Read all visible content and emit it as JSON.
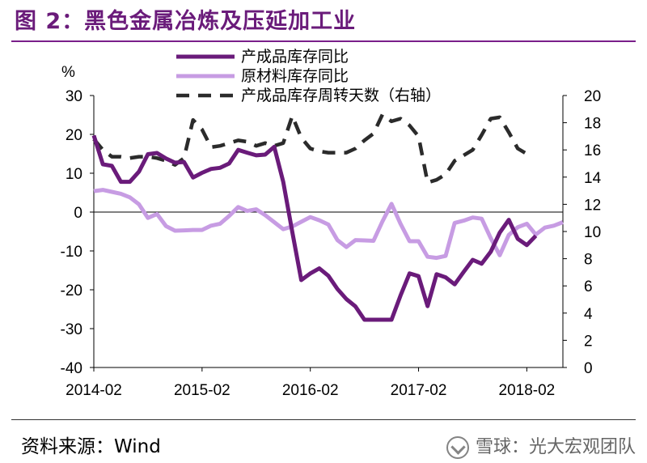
{
  "figure": {
    "title": "图 2：黑色金属冶炼及压延加工业",
    "source": "资料来源：Wind",
    "watermark": "雪球：光大宏观团队"
  },
  "chart_data": {
    "type": "line",
    "y_unit": "%",
    "x_tick_labels": [
      "2014-02",
      "2015-02",
      "2016-02",
      "2017-02",
      "2018-02"
    ],
    "x_range": [
      0,
      52
    ],
    "ylim_left": [
      -40,
      30
    ],
    "yticks_left": [
      -40,
      -30,
      -20,
      -10,
      0,
      10,
      20,
      30
    ],
    "ylim_right": [
      0,
      20
    ],
    "yticks_right": [
      0,
      2,
      4,
      6,
      8,
      10,
      12,
      14,
      16,
      18,
      20
    ],
    "legend_position": "top",
    "grid": false,
    "series": [
      {
        "name": "产成品库存同比",
        "axis": "left",
        "style": "solid",
        "color": "#6a1b7a",
        "x": [
          0,
          1,
          2,
          3,
          4,
          5,
          6,
          7,
          8,
          9,
          10,
          11,
          12,
          13,
          14,
          15,
          16,
          17,
          18,
          19,
          20,
          21,
          22,
          23,
          24,
          25,
          26,
          27,
          28,
          29,
          30,
          31,
          32,
          33,
          34,
          35,
          36,
          37,
          38,
          39,
          40,
          41,
          42,
          43,
          44,
          45,
          46,
          47,
          48,
          49,
          50,
          51,
          52
        ],
        "values": [
          19.7,
          12.3,
          11.9,
          7.8,
          7.8,
          10.4,
          14.9,
          15.2,
          13.8,
          12.7,
          12.9,
          8.9,
          10.1,
          11.1,
          11.4,
          12.5,
          16.0,
          15.3,
          14.6,
          14.8,
          16.8,
          7.8,
          -5.1,
          -17.5,
          -15.8,
          -14.5,
          -16.4,
          -19.8,
          -22.4,
          -24.3,
          -27.7,
          -27.7,
          -27.7,
          -27.7,
          -21.5,
          -15.8,
          -16.5,
          -24.2,
          -16.0,
          -16.8,
          -18.6,
          -15.4,
          -12.3,
          -13.3,
          -10.2,
          -5.3,
          -2.0,
          -6.9,
          -8.5,
          -6.1,
          null,
          null,
          null
        ]
      },
      {
        "name": "原材料库存同比",
        "axis": "left",
        "style": "solid",
        "color": "#c79ce3",
        "x": [
          0,
          1,
          2,
          3,
          4,
          5,
          6,
          7,
          8,
          9,
          10,
          11,
          12,
          13,
          14,
          15,
          16,
          17,
          18,
          19,
          20,
          21,
          22,
          23,
          24,
          25,
          26,
          27,
          28,
          29,
          30,
          31,
          32,
          33,
          34,
          35,
          36,
          37,
          38,
          39,
          40,
          41,
          42,
          43,
          44,
          45,
          46,
          47,
          48,
          49,
          50,
          51,
          52
        ],
        "values": [
          5.4,
          5.7,
          5.2,
          4.7,
          3.8,
          2.0,
          -1.5,
          -0.5,
          -3.6,
          -4.8,
          -4.7,
          -4.6,
          -4.6,
          -3.5,
          -3.0,
          -1.0,
          1.3,
          0.3,
          0.7,
          -0.8,
          -2.6,
          -4.4,
          -3.7,
          -2.5,
          -1.3,
          -2.1,
          -3.2,
          -7.2,
          -9.0,
          -7.2,
          -7.3,
          -7.4,
          -2.4,
          2.1,
          -3.0,
          -7.5,
          -7.5,
          -11.5,
          -11.8,
          -11.3,
          -2.8,
          -2.2,
          -1.4,
          -1.7,
          -6.7,
          -11.1,
          -5.9,
          -3.9,
          -3.0,
          -5.8,
          -4.0,
          -3.5,
          -2.6
        ]
      },
      {
        "name": "产成品库存周转天数（右轴）",
        "axis": "right",
        "style": "dashed",
        "color": "#2b2b2b",
        "x": [
          0,
          1,
          2,
          3,
          4,
          5,
          6,
          7,
          8,
          9,
          10,
          11,
          12,
          13,
          14,
          15,
          16,
          17,
          18,
          19,
          20,
          21,
          22,
          23,
          24,
          25,
          26,
          27,
          28,
          29,
          30,
          31,
          32,
          33,
          34,
          35,
          36,
          37,
          38,
          39,
          40,
          41,
          42,
          43,
          44,
          45,
          46,
          47,
          48,
          49,
          50,
          51,
          52
        ],
        "values": [
          16.8,
          16.0,
          15.5,
          15.5,
          15.4,
          15.5,
          15.5,
          15.4,
          15.2,
          14.9,
          15.4,
          18.2,
          17.5,
          16.2,
          16.3,
          16.5,
          16.7,
          16.6,
          16.3,
          16.5,
          16.3,
          16.5,
          18.5,
          16.9,
          16.1,
          15.9,
          15.8,
          15.8,
          15.8,
          16.1,
          16.7,
          17.2,
          18.6,
          18.1,
          18.3,
          17.8,
          17.0,
          13.6,
          13.8,
          14.2,
          15.2,
          15.6,
          16.0,
          17.1,
          18.3,
          18.4,
          17.3,
          16.1,
          15.7,
          null,
          null,
          null,
          null
        ]
      }
    ]
  }
}
